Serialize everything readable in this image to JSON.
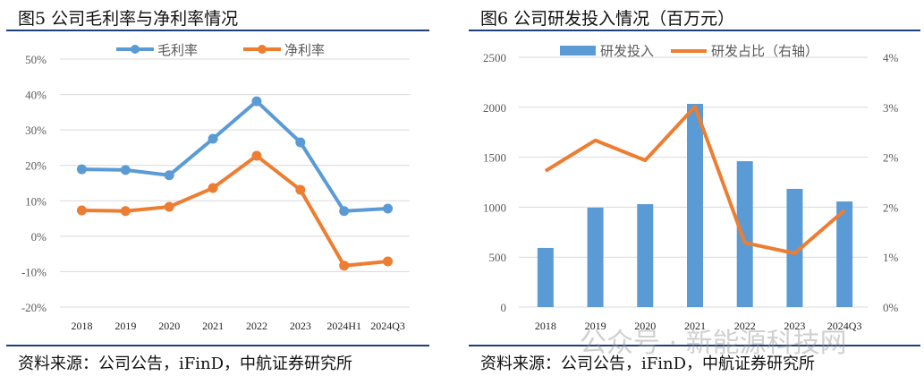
{
  "chart_data": [
    {
      "type": "line",
      "title": "图5  公司毛利率与净利率情况",
      "categories": [
        "2018",
        "2019",
        "2020",
        "2021",
        "2022",
        "2023",
        "2024H1",
        "2024Q3"
      ],
      "series": [
        {
          "name": "毛利率",
          "color": "#5b9bd5",
          "values": [
            18.9,
            18.7,
            17.2,
            27.5,
            38.1,
            26.5,
            7.1,
            7.8
          ]
        },
        {
          "name": "净利率",
          "color": "#ed7d31",
          "values": [
            7.3,
            7.1,
            8.3,
            13.6,
            22.7,
            13.1,
            -8.3,
            -7.1
          ]
        }
      ],
      "ylim": [
        -20,
        50
      ],
      "yticks": [
        "50%",
        "40%",
        "30%",
        "20%",
        "10%",
        "0%",
        "-10%",
        "-20%"
      ],
      "grid": true,
      "legend": "top-center",
      "source": "资料来源：公司公告，iFinD，中航证券研究所"
    },
    {
      "type": "bar+line",
      "title": "图6  公司研发投入情况（百万元）",
      "categories": [
        "2018",
        "2019",
        "2020",
        "2021",
        "2022",
        "2023",
        "2024Q3"
      ],
      "bars": {
        "name": "研发投入",
        "color": "#5b9bd5",
        "values": [
          592,
          995,
          1030,
          2034,
          1460,
          1183,
          1057
        ]
      },
      "line": {
        "name": "研发占比（右轴）",
        "color": "#ed7d31",
        "values": [
          2.18,
          2.67,
          2.35,
          3.21,
          1.03,
          0.86,
          1.55
        ]
      },
      "ylim": [
        0,
        2500
      ],
      "yticks": [
        "2500",
        "2000",
        "1500",
        "1000",
        "500",
        "0"
      ],
      "y2lim": [
        0,
        4
      ],
      "y2ticks": [
        "4%",
        "3%",
        "2%",
        "2%",
        "1%",
        "0%"
      ],
      "grid": true,
      "legend": "top-center",
      "source": "资料来源：公司公告，iFinD，中航证券研究所"
    }
  ],
  "watermark": "公众号 · 新能源科技网"
}
